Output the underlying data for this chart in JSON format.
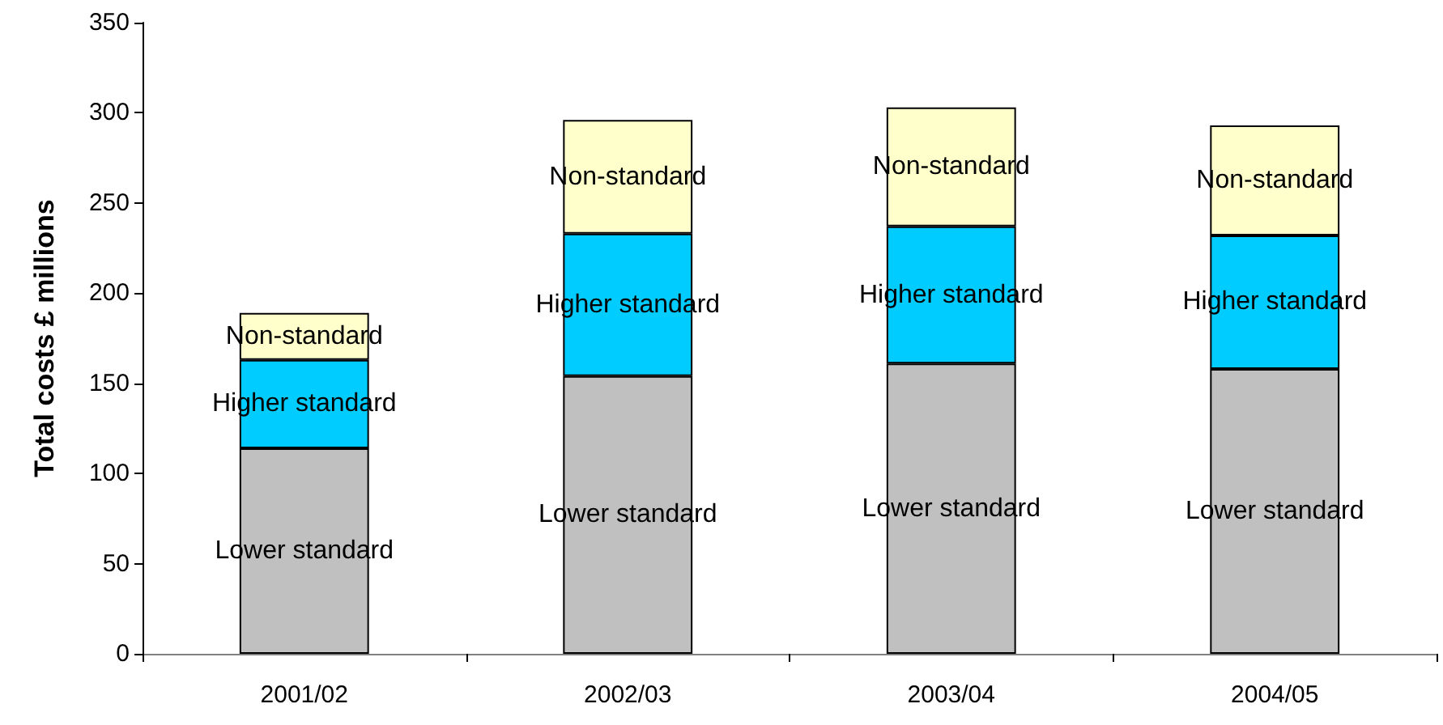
{
  "chart_data": {
    "type": "bar",
    "ylabel": "Total costs £ millions",
    "categories": [
      "2001/02",
      "2002/03",
      "2003/04",
      "2004/05"
    ],
    "stacked": true,
    "series": [
      {
        "name": "Lower standard",
        "color": "#c0c0c0",
        "values": [
          114,
          154,
          161,
          158
        ]
      },
      {
        "name": "Higher standard",
        "color": "#00ccff",
        "values": [
          49,
          79,
          76,
          74
        ]
      },
      {
        "name": "Non-standard",
        "color": "#ffffcc",
        "values": [
          26,
          63,
          66,
          61
        ]
      }
    ],
    "ylim": [
      0,
      350
    ],
    "yticks": [
      0,
      50,
      100,
      150,
      200,
      250,
      300,
      350
    ],
    "grid": false,
    "legend": false
  }
}
